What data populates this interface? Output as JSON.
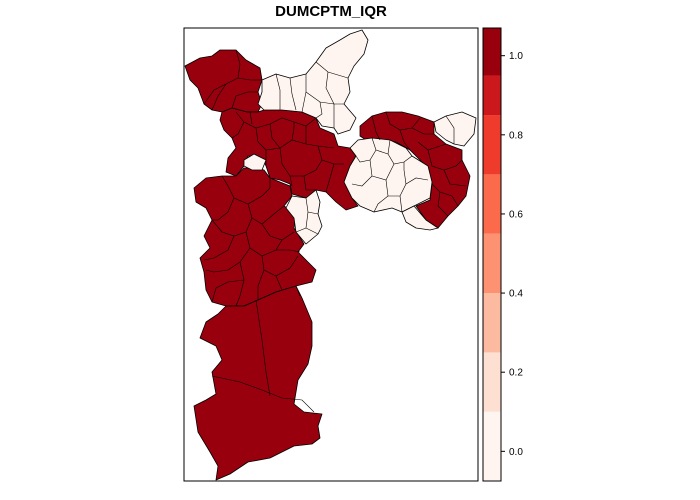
{
  "title": "DUMCPTM_IQR",
  "legend": {
    "bins": [
      {
        "from": -0.075,
        "to": 0.1,
        "color": "#FFF5F0"
      },
      {
        "from": 0.1,
        "to": 0.25,
        "color": "#FEE0D2"
      },
      {
        "from": 0.25,
        "to": 0.4,
        "color": "#FCBBA1"
      },
      {
        "from": 0.4,
        "to": 0.55,
        "color": "#FC9272"
      },
      {
        "from": 0.55,
        "to": 0.7,
        "color": "#FB6A4A"
      },
      {
        "from": 0.7,
        "to": 0.85,
        "color": "#EF3B2C"
      },
      {
        "from": 0.85,
        "to": 0.95,
        "color": "#CB181D"
      },
      {
        "from": 0.95,
        "to": 1.07,
        "color": "#99000D"
      }
    ],
    "ticks": [
      {
        "value": 0.0,
        "label": "0.0"
      },
      {
        "value": 0.2,
        "label": "0.2"
      },
      {
        "value": 0.4,
        "label": "0.4"
      },
      {
        "value": 0.6,
        "label": "0.6"
      },
      {
        "value": 0.8,
        "label": "0.8"
      },
      {
        "value": 1.0,
        "label": "1.0"
      }
    ],
    "range": [
      -0.075,
      1.07
    ]
  },
  "fill_colors": {
    "zero": "#FFF5F0",
    "one": "#99000D",
    "border": "#000000"
  }
}
